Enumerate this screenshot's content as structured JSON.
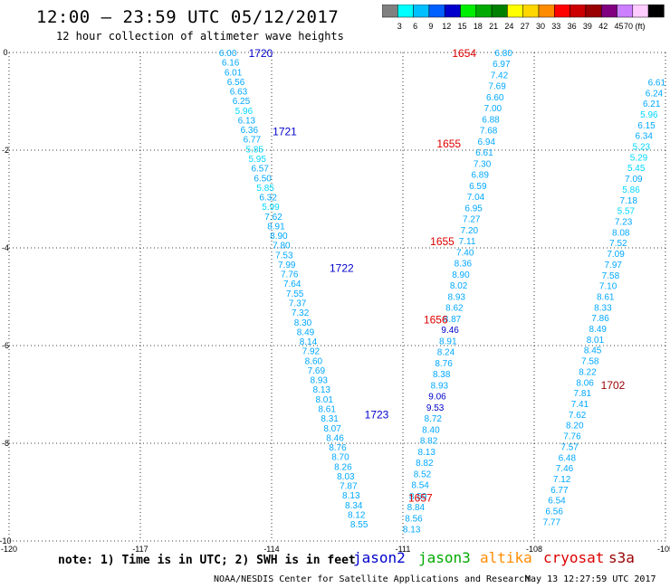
{
  "header": {
    "title": "12:00 — 23:59 UTC 05/12/2017",
    "subtitle": "12 hour collection of altimeter wave heights"
  },
  "colorbar": {
    "colors": [
      "#808080",
      "#00ffff",
      "#00bfff",
      "#0060ff",
      "#0000cc",
      "#00ee00",
      "#00aa00",
      "#008000",
      "#ffff00",
      "#ffd700",
      "#ff8c00",
      "#ff0000",
      "#cc0000",
      "#990000",
      "#800080",
      "#cc80ff",
      "#ffccff",
      "#000000"
    ],
    "labels": [
      "3",
      "6",
      "9",
      "12",
      "15",
      "18",
      "21",
      "24",
      "27",
      "30",
      "33",
      "36",
      "39",
      "42",
      "45",
      "70 (ft)"
    ]
  },
  "axes": {
    "x_ticks": [
      "-120",
      "-117",
      "-114",
      "-111",
      "-108",
      "-105"
    ],
    "x_tick_values": [
      -120,
      -117,
      -114,
      -111,
      -108,
      -105
    ],
    "y_ticks": [
      "0",
      "-2",
      "-4",
      "-6",
      "-8",
      "-10"
    ],
    "y_tick_values": [
      0,
      -2,
      -4,
      -6,
      -8,
      -10
    ],
    "xlim": [
      -120,
      -105
    ],
    "ylim": [
      -10,
      0
    ]
  },
  "map_data": {
    "track1": {
      "values": [
        "6.00",
        "6.16",
        "6.01",
        "6.56",
        "6.63",
        "6.25",
        "5.96",
        "6.13",
        "6.36",
        "6.77",
        "5.85",
        "5.95",
        "6.57",
        "6.50",
        "5.85",
        "6.32",
        "5.99",
        "7.62",
        "8.91",
        "8.90",
        "7.80",
        "7.53",
        "7.99",
        "7.76",
        "7.64",
        "7.55",
        "7.37",
        "7.32",
        "8.30",
        "8.49",
        "8.14",
        "7.92",
        "8.60",
        "7.69",
        "8.93",
        "8.13",
        "8.01",
        "8.61",
        "8.31",
        "8.07",
        "8.46",
        "8.76",
        "8.70",
        "8.26",
        "8.03",
        "7.87",
        "8.13",
        "8.34",
        "8.12",
        "8.55"
      ],
      "start": [
        -115.0,
        0.0
      ],
      "end": [
        -112.0,
        -9.65
      ]
    },
    "track2": {
      "values": [
        "6.80",
        "6.97",
        "7.42",
        "7.69",
        "6.60",
        "7.00",
        "6.88",
        "7.68",
        "6.94",
        "6.61",
        "7.30",
        "6.89",
        "6.59",
        "7.04",
        "6.95",
        "7.27",
        "7.20",
        "7.11",
        "7.40",
        "8.36",
        "8.90",
        "8.02",
        "8.93",
        "8.62",
        "8.87",
        "9.46",
        "8.91",
        "8.24",
        "8.76",
        "8.38",
        "8.93",
        "9.06",
        "9.53",
        "8.72",
        "8.40",
        "8.82",
        "8.13",
        "8.82",
        "8.52",
        "8.54",
        "8.59",
        "8.84",
        "8.56",
        "8.13"
      ],
      "start": [
        -108.7,
        0.0
      ],
      "end": [
        -110.8,
        -9.75
      ]
    },
    "track3": {
      "values": [
        "6.80",
        "6.97",
        "7.42",
        "7.69",
        "6.60",
        "7.00",
        "6.88",
        "7.68",
        "6.94",
        "6.61",
        "7.30",
        "6.89",
        "6.59",
        "7.04",
        "6.95",
        "7.27",
        "7.20",
        "7.11",
        "7.40",
        "8.36",
        "8.90",
        "8.02",
        "8.93",
        "8.62",
        "8.87",
        "9.46",
        "8.91",
        "8.24",
        "8.76",
        "8.38",
        "8.93",
        "9.06",
        "9.53",
        "8.72",
        "8.40",
        "8.82",
        "8.13",
        "8.82",
        "8.52",
        "8.54",
        "8.59",
        "8.84",
        "8.56",
        "8.13"
      ],
      "start": [
        -110.65,
        0.0
      ],
      "end": [
        -111.2,
        -9.75
      ]
    },
    "track4": {
      "values": [
        "6.61",
        "6.24",
        "6.21",
        "5.96",
        "6.15",
        "6.34",
        "5.23",
        "5.29",
        "5.45",
        "7.09",
        "5.86",
        "7.18",
        "5.57",
        "7.23",
        "8.08",
        "7.52",
        "7.09",
        "7.97",
        "7.58",
        "7.10",
        "8.61",
        "8.33",
        "7.86",
        "8.49",
        "8.01",
        "8.45",
        "7.58",
        "8.22",
        "8.06",
        "7.81",
        "7.41",
        "7.62",
        "8.20",
        "7.76",
        "7.57",
        "6.48",
        "7.46",
        "7.12",
        "6.77",
        "6.54",
        "6.56",
        "7.77"
      ],
      "start": [
        -105.2,
        -0.6
      ],
      "end": [
        -107.6,
        -9.6
      ]
    },
    "labels": [
      {
        "text": "1720",
        "x": -114.25,
        "y": 0.0,
        "color": "#0000cc"
      },
      {
        "text": "1721",
        "x": -113.7,
        "y": -1.6,
        "color": "#0000cc"
      },
      {
        "text": "1722",
        "x": -112.4,
        "y": -4.4,
        "color": "#0000cc"
      },
      {
        "text": "1723",
        "x": -111.6,
        "y": -7.4,
        "color": "#0000cc"
      },
      {
        "text": "1654",
        "x": -109.6,
        "y": 0.0,
        "color": "#dd0000"
      },
      {
        "text": "1655",
        "x": -109.95,
        "y": -1.85,
        "color": "#dd0000"
      },
      {
        "text": "1655",
        "x": -110.1,
        "y": -3.85,
        "color": "#dd0000"
      },
      {
        "text": "1656",
        "x": -110.25,
        "y": -5.45,
        "color": "#dd0000"
      },
      {
        "text": "1657",
        "x": -110.6,
        "y": -9.1,
        "color": "#dd0000"
      },
      {
        "text": "1702",
        "x": -106.2,
        "y": -6.8,
        "color": "#990000"
      }
    ]
  },
  "footer": {
    "note": "note: 1) Time is in UTC; 2) SWH is in feet",
    "satellites": [
      {
        "name": "jason2",
        "color": "#0000cc"
      },
      {
        "name": "jason3",
        "color": "#00aa00"
      },
      {
        "name": "altika",
        "color": "#ff8c00"
      },
      {
        "name": "cryosat",
        "color": "#dd0000"
      },
      {
        "name": "s3a",
        "color": "#990000"
      }
    ],
    "credit": "NOAA/NESDIS Center for Satellite Applications and Research",
    "timestamp": "May 13 12:27:59 UTC 2017"
  }
}
